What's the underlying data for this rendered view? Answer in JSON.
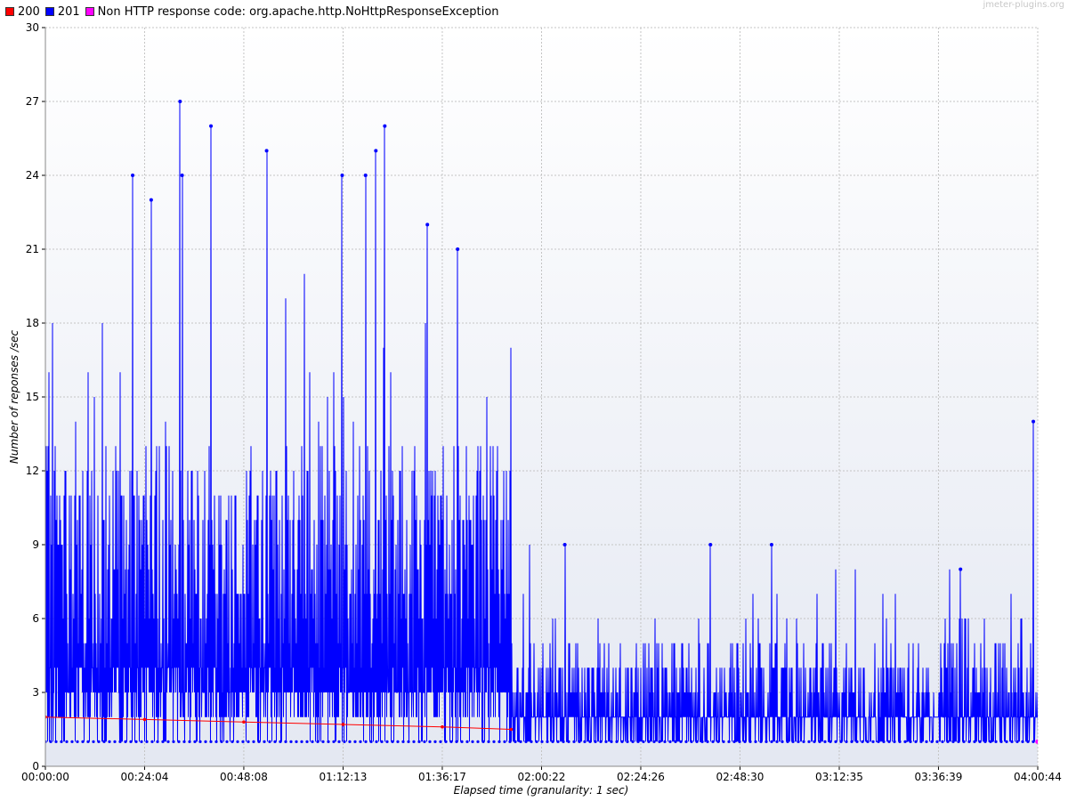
{
  "watermark": "jmeter-plugins.org",
  "legend": [
    {
      "label": "200",
      "color": "#ff0000"
    },
    {
      "label": "201",
      "color": "#0000ff"
    },
    {
      "label": "Non HTTP response code: org.apache.http.NoHttpResponseException",
      "color": "#ff00ff"
    }
  ],
  "chart_data": {
    "type": "line",
    "xlabel": "Elapsed time (granularity: 1 sec)",
    "ylabel": "Number of reponses /sec",
    "ylim": [
      0,
      30
    ],
    "yticks": [
      0,
      3,
      6,
      9,
      12,
      15,
      18,
      21,
      24,
      27,
      30
    ],
    "xlim": [
      "00:00:00",
      "04:00:44"
    ],
    "xticks": [
      "00:00:00",
      "00:24:04",
      "00:48:08",
      "01:12:13",
      "01:36:17",
      "02:00:22",
      "02:24:26",
      "02:48:30",
      "03:12:35",
      "03:36:39",
      "04:00:44"
    ],
    "grid": true,
    "legend_position": "top-left",
    "series": [
      {
        "name": "200",
        "color": "#ff0000",
        "x": [
          "00:00:00",
          "00:24:04",
          "00:48:08",
          "01:12:13",
          "01:36:17",
          "01:53:00"
        ],
        "y": [
          2,
          1.9,
          1.8,
          1.7,
          1.6,
          1.5
        ]
      },
      {
        "name": "201",
        "color": "#0000ff",
        "phases": [
          {
            "from": "00:00:00",
            "to": "01:53:00",
            "min": 1,
            "typical_range": [
              3,
              13
            ],
            "peak": 27
          },
          {
            "from": "01:53:00",
            "to": "04:00:44",
            "min": 1,
            "typical_range": [
              1,
              5
            ],
            "peak": 14
          }
        ],
        "peaks": [
          {
            "x": "00:21:10",
            "y": 24
          },
          {
            "x": "00:25:40",
            "y": 23
          },
          {
            "x": "00:32:40",
            "y": 27
          },
          {
            "x": "00:33:10",
            "y": 24
          },
          {
            "x": "00:40:10",
            "y": 26
          },
          {
            "x": "00:53:40",
            "y": 25
          },
          {
            "x": "01:12:00",
            "y": 24
          },
          {
            "x": "01:17:40",
            "y": 24
          },
          {
            "x": "01:20:10",
            "y": 25
          },
          {
            "x": "01:22:20",
            "y": 26
          },
          {
            "x": "01:32:40",
            "y": 22
          },
          {
            "x": "01:40:00",
            "y": 21
          },
          {
            "x": "02:06:00",
            "y": 9
          },
          {
            "x": "02:41:20",
            "y": 9
          },
          {
            "x": "02:56:10",
            "y": 9
          },
          {
            "x": "03:42:00",
            "y": 8
          },
          {
            "x": "03:59:40",
            "y": 14
          }
        ]
      },
      {
        "name": "Non HTTP response code: org.apache.http.NoHttpResponseException",
        "color": "#ff00ff",
        "x": [
          "04:00:40"
        ],
        "y": [
          1
        ]
      }
    ]
  }
}
